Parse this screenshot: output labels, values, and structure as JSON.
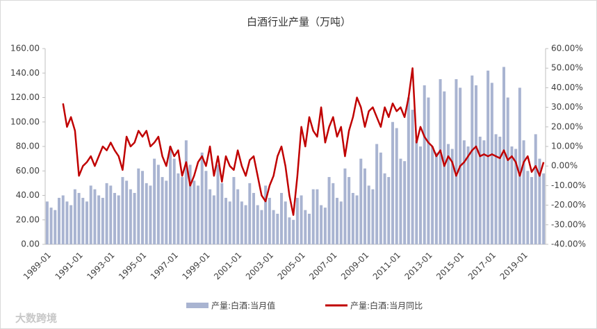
{
  "chart_data": {
    "type": "bar-line",
    "title": "白酒行业产量（万吨）",
    "watermark": "大数跨境",
    "categories": [
      "1989-01",
      null,
      null,
      null,
      null,
      null,
      null,
      null,
      "1991-01",
      null,
      null,
      null,
      null,
      null,
      null,
      null,
      "1993-01",
      null,
      null,
      null,
      null,
      null,
      null,
      null,
      "1995-01",
      null,
      null,
      null,
      null,
      null,
      null,
      null,
      "1997-01",
      null,
      null,
      null,
      null,
      null,
      null,
      null,
      "1999-01",
      null,
      null,
      null,
      null,
      null,
      null,
      null,
      "2001-01",
      null,
      null,
      null,
      null,
      null,
      null,
      null,
      "2003-01",
      null,
      null,
      null,
      null,
      null,
      null,
      null,
      "2005-01",
      null,
      null,
      null,
      null,
      null,
      null,
      null,
      "2007-01",
      null,
      null,
      null,
      null,
      null,
      null,
      null,
      "2009-01",
      null,
      null,
      null,
      null,
      null,
      null,
      null,
      "2011-01",
      null,
      null,
      null,
      null,
      null,
      null,
      null,
      "2013-01",
      null,
      null,
      null,
      null,
      null,
      null,
      null,
      "2015-01",
      null,
      null,
      null,
      null,
      null,
      null,
      null,
      "2017-01",
      null,
      null,
      null,
      null,
      null,
      null,
      null,
      "2019-01",
      null,
      null,
      null,
      null,
      null
    ],
    "series": [
      {
        "name": "产量:白酒:当月值",
        "color": "#a9b4d1",
        "type": "bar",
        "axis": "y",
        "values": [
          35,
          30,
          28,
          38,
          40,
          35,
          32,
          45,
          42,
          38,
          35,
          48,
          45,
          40,
          38,
          50,
          48,
          42,
          40,
          55,
          52,
          45,
          42,
          62,
          60,
          50,
          48,
          70,
          65,
          55,
          52,
          80,
          70,
          58,
          55,
          85,
          65,
          52,
          48,
          75,
          60,
          45,
          40,
          65,
          50,
          38,
          35,
          55,
          45,
          35,
          32,
          50,
          42,
          32,
          28,
          48,
          38,
          28,
          25,
          42,
          35,
          22,
          20,
          38,
          40,
          28,
          25,
          45,
          45,
          32,
          30,
          55,
          50,
          38,
          35,
          62,
          55,
          42,
          40,
          70,
          62,
          48,
          45,
          82,
          75,
          58,
          55,
          100,
          95,
          70,
          68,
          120,
          110,
          85,
          80,
          130,
          120,
          80,
          75,
          135,
          125,
          82,
          78,
          135,
          128,
          85,
          80,
          138,
          130,
          88,
          85,
          142,
          132,
          90,
          88,
          145,
          120,
          80,
          78,
          128,
          85,
          60,
          55,
          90,
          70,
          58
        ]
      },
      {
        "name": "产量:白酒:当月同比",
        "color": "#c00000",
        "type": "line",
        "axis": "y2",
        "values": [
          null,
          null,
          null,
          null,
          32,
          20,
          25,
          18,
          -5,
          0,
          2,
          5,
          0,
          5,
          10,
          8,
          12,
          8,
          5,
          -2,
          15,
          10,
          12,
          18,
          15,
          18,
          10,
          12,
          15,
          5,
          0,
          10,
          5,
          8,
          -5,
          2,
          -10,
          -5,
          2,
          5,
          0,
          10,
          -5,
          5,
          -8,
          5,
          0,
          -2,
          8,
          0,
          -5,
          3,
          5,
          -5,
          -15,
          -18,
          -10,
          -5,
          5,
          10,
          0,
          -15,
          -25,
          -5,
          20,
          10,
          25,
          18,
          15,
          30,
          12,
          20,
          25,
          15,
          20,
          5,
          18,
          25,
          35,
          30,
          20,
          28,
          30,
          25,
          20,
          30,
          25,
          32,
          28,
          30,
          25,
          35,
          50,
          12,
          20,
          15,
          12,
          10,
          5,
          8,
          0,
          5,
          2,
          -5,
          0,
          2,
          5,
          8,
          10,
          5,
          6,
          5,
          6,
          5,
          4,
          8,
          3,
          5,
          2,
          -5,
          2,
          5,
          -3,
          0,
          -5,
          2
        ]
      }
    ],
    "ylim": [
      0,
      160
    ],
    "yticks": [
      {
        "value": 0,
        "label": "0.00"
      },
      {
        "value": 20,
        "label": "20.00"
      },
      {
        "value": 40,
        "label": "40.00"
      },
      {
        "value": 60,
        "label": "60.00"
      },
      {
        "value": 80,
        "label": "80.00"
      },
      {
        "value": 100,
        "label": "100.00"
      },
      {
        "value": 120,
        "label": "120.00"
      },
      {
        "value": 140,
        "label": "140.00"
      },
      {
        "value": 160,
        "label": "160.00"
      }
    ],
    "y2lim": [
      -40,
      60
    ],
    "y2ticks": [
      {
        "value": -40,
        "label": "-40.00%"
      },
      {
        "value": -30,
        "label": "-30.00%"
      },
      {
        "value": -20,
        "label": "-20.00%"
      },
      {
        "value": -10,
        "label": "-10.00%"
      },
      {
        "value": 0,
        "label": "0.00%"
      },
      {
        "value": 10,
        "label": "10.00%"
      },
      {
        "value": 20,
        "label": "20.00%"
      },
      {
        "value": 30,
        "label": "30.00%"
      },
      {
        "value": 40,
        "label": "40.00%"
      },
      {
        "value": 50,
        "label": "50.00%"
      },
      {
        "value": 60,
        "label": "60.00%"
      }
    ],
    "legend": "bottom"
  }
}
